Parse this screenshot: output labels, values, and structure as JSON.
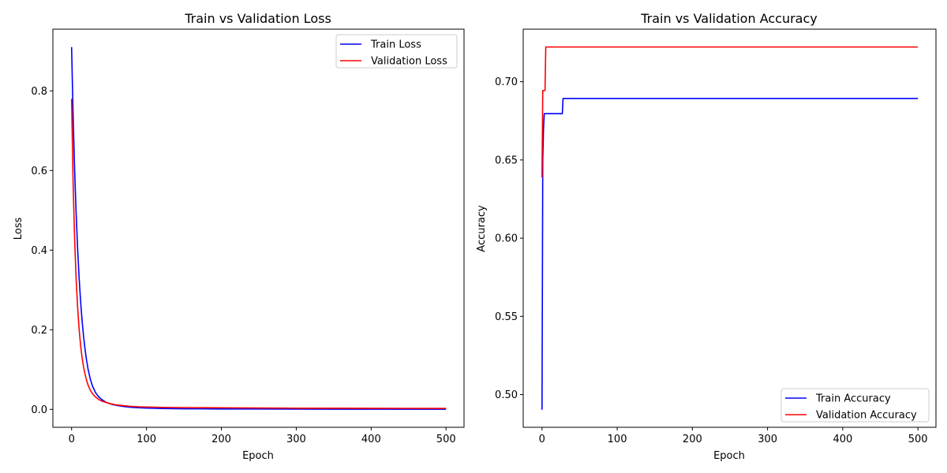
{
  "chart_data": [
    {
      "type": "line",
      "title": "Train vs Validation Loss",
      "xlabel": "Epoch",
      "ylabel": "Loss",
      "xlim": [
        -25,
        524
      ],
      "ylim": [
        -0.045,
        0.955
      ],
      "xticks": [
        0,
        100,
        200,
        300,
        400,
        500
      ],
      "yticks": [
        0.0,
        0.2,
        0.4,
        0.6,
        0.8
      ],
      "ytick_labels": [
        "0.0",
        "0.2",
        "0.4",
        "0.6",
        "0.8"
      ],
      "grid": false,
      "legend_position": "upper right",
      "series": [
        {
          "name": "Train Loss",
          "color": "#0000ff",
          "x": [
            0,
            2,
            4,
            6,
            8,
            10,
            12,
            14,
            16,
            18,
            20,
            22,
            25,
            28,
            32,
            36,
            40,
            45,
            50,
            55,
            60,
            70,
            80,
            90,
            100,
            120,
            150,
            200,
            250,
            300,
            350,
            400,
            450,
            500
          ],
          "y": [
            0.91,
            0.74,
            0.605,
            0.495,
            0.405,
            0.332,
            0.272,
            0.223,
            0.183,
            0.15,
            0.123,
            0.101,
            0.076,
            0.058,
            0.042,
            0.032,
            0.025,
            0.019,
            0.015,
            0.012,
            0.01,
            0.007,
            0.005,
            0.004,
            0.003,
            0.002,
            0.0015,
            0.001,
            0.0008,
            0.0006,
            0.0005,
            0.0004,
            0.0004,
            0.0003
          ]
        },
        {
          "name": "Validation Loss",
          "color": "#ff0000",
          "x": [
            0,
            2,
            4,
            6,
            8,
            10,
            12,
            14,
            16,
            18,
            20,
            22,
            25,
            28,
            32,
            36,
            40,
            45,
            50,
            55,
            60,
            70,
            80,
            90,
            100,
            120,
            150,
            200,
            250,
            300,
            350,
            400,
            450,
            500
          ],
          "y": [
            0.78,
            0.57,
            0.43,
            0.33,
            0.258,
            0.203,
            0.161,
            0.13,
            0.106,
            0.088,
            0.073,
            0.061,
            0.048,
            0.039,
            0.031,
            0.025,
            0.021,
            0.018,
            0.015,
            0.013,
            0.011,
            0.009,
            0.0075,
            0.0065,
            0.006,
            0.005,
            0.0045,
            0.004,
            0.0035,
            0.003,
            0.0028,
            0.0026,
            0.0025,
            0.0024
          ]
        }
      ]
    },
    {
      "type": "line",
      "title": "Train vs Validation Accuracy",
      "xlabel": "Epoch",
      "ylabel": "Accuracy",
      "xlim": [
        -25,
        524
      ],
      "ylim": [
        0.4791,
        0.7336
      ],
      "xticks": [
        0,
        100,
        200,
        300,
        400,
        500
      ],
      "yticks": [
        0.5,
        0.55,
        0.6,
        0.65,
        0.7
      ],
      "ytick_labels": [
        "0.50",
        "0.55",
        "0.60",
        "0.65",
        "0.70"
      ],
      "grid": false,
      "legend_position": "lower right",
      "series": [
        {
          "name": "Train Accuracy",
          "color": "#0000ff",
          "x": [
            0,
            1,
            2,
            3,
            27,
            28,
            500
          ],
          "y": [
            0.4903,
            0.6505,
            0.6699,
            0.6796,
            0.6796,
            0.6893,
            0.6893
          ]
        },
        {
          "name": "Validation Accuracy",
          "color": "#ff0000",
          "x": [
            0,
            1,
            4,
            5,
            500
          ],
          "y": [
            0.6389,
            0.6944,
            0.6944,
            0.7222,
            0.7222
          ]
        }
      ]
    }
  ]
}
